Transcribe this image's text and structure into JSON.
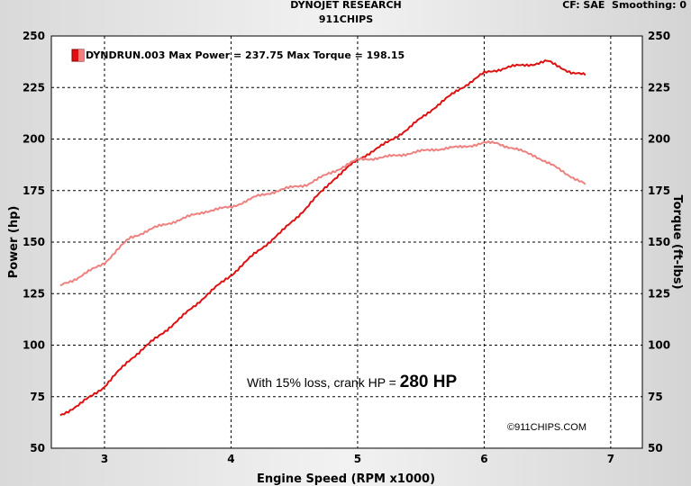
{
  "header": {
    "title_line1": "DYNOJET RESEARCH",
    "title_line2": "911CHIPS",
    "correction": "CF: SAE  Smoothing: 0"
  },
  "colors": {
    "power": "#dd1111",
    "torque": "#ee8080",
    "grid": "#000000",
    "plot_bg": "#ffffff"
  },
  "annotation": {
    "prefix": "With 15% loss, crank HP = ",
    "value": "280 HP"
  },
  "watermark": "©911CHIPS.COM",
  "chart_data": {
    "type": "line",
    "title": "DYNOJET RESEARCH",
    "subtitle": "911CHIPS",
    "xlabel": "Engine Speed (RPM x1000)",
    "ylabel": "Power (hp)",
    "ylabel_right": "Torque (ft-lbs)",
    "xlim": [
      2.58,
      7.25
    ],
    "ylim": [
      50,
      250
    ],
    "ylim_right": [
      50,
      250
    ],
    "xticks": [
      3,
      4,
      5,
      6,
      7
    ],
    "yticks": [
      50,
      75,
      100,
      125,
      150,
      175,
      200,
      225,
      250
    ],
    "grid": true,
    "legend": {
      "position": "top-left",
      "text": "DYNDRUN.003 Max Power = 237.75 Max Torque = 198.15"
    },
    "series": [
      {
        "key": "power",
        "x": [
          2.65,
          2.8,
          3.0,
          3.2,
          3.4,
          3.6,
          3.8,
          4.0,
          4.2,
          4.4,
          4.6,
          4.8,
          5.0,
          5.2,
          5.4,
          5.6,
          5.8,
          6.0,
          6.2,
          6.4,
          6.5,
          6.6,
          6.7,
          6.8
        ],
        "values": [
          66,
          71,
          80,
          93,
          103,
          113,
          124,
          134,
          145,
          155,
          167,
          180,
          190,
          197,
          205,
          215,
          224,
          232,
          235,
          236.5,
          237.75,
          235,
          232,
          231
        ]
      },
      {
        "key": "torque",
        "x": [
          2.65,
          2.8,
          3.0,
          3.2,
          3.4,
          3.6,
          3.8,
          4.0,
          4.2,
          4.4,
          4.6,
          4.8,
          5.0,
          5.2,
          5.4,
          5.6,
          5.8,
          6.0,
          6.1,
          6.2,
          6.4,
          6.6,
          6.8
        ],
        "values": [
          129,
          133,
          140,
          152,
          157,
          161,
          165,
          167,
          172,
          175.5,
          178,
          184,
          190,
          191,
          193,
          195,
          196,
          198,
          198.15,
          196,
          192,
          185,
          178
        ]
      }
    ]
  }
}
